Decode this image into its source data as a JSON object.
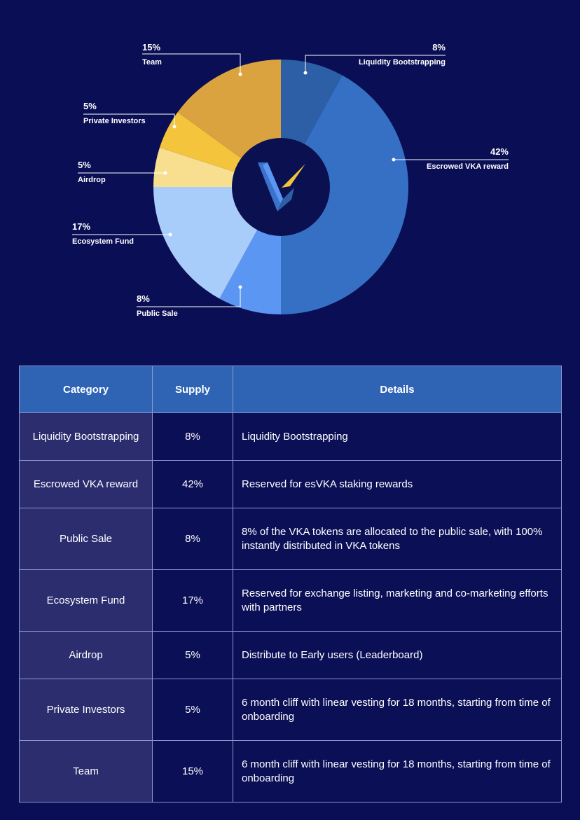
{
  "chart_data": {
    "type": "pie",
    "unit": "%",
    "slices": [
      {
        "label": "Liquidity Bootstrapping",
        "value": 8,
        "color": "#2c5fa6"
      },
      {
        "label": "Escrowed VKA reward",
        "value": 42,
        "color": "#3570c5"
      },
      {
        "label": "Public Sale",
        "value": 8,
        "color": "#5b96f2"
      },
      {
        "label": "Ecosystem Fund",
        "value": 17,
        "color": "#a9cdfb"
      },
      {
        "label": "Airdrop",
        "value": 5,
        "color": "#f7df8f"
      },
      {
        "label": "Private Investors",
        "value": 5,
        "color": "#f3c43c"
      },
      {
        "label": "Team",
        "value": 15,
        "color": "#dba33f"
      }
    ],
    "center_logo": "vka-logo"
  },
  "table": {
    "headers": [
      "Category",
      "Supply",
      "Details"
    ],
    "rows": [
      {
        "category": "Liquidity Bootstrapping",
        "supply": "8%",
        "details": "Liquidity Bootstrapping"
      },
      {
        "category": "Escrowed VKA reward",
        "supply": "42%",
        "details": "Reserved for esVKA staking rewards"
      },
      {
        "category": "Public Sale",
        "supply": "8%",
        "details": "8% of the VKA tokens are allocated to the public sale, with 100% instantly distributed in VKA tokens"
      },
      {
        "category": "Ecosystem Fund",
        "supply": "17%",
        "details": "Reserved for exchange listing, marketing and co-marketing efforts with partners"
      },
      {
        "category": "Airdrop",
        "supply": "5%",
        "details": "Distribute to Early users (Leaderboard)"
      },
      {
        "category": "Private Investors",
        "supply": "5%",
        "details": "6 month cliff with linear vesting for 18 months, starting from time of onboarding"
      },
      {
        "category": "Team",
        "supply": "15%",
        "details": "6 month cliff with linear vesting for 18 months, starting from time of onboarding"
      }
    ]
  },
  "colors": {
    "background": "#0a0e54",
    "header_background": "#2f64b4",
    "category_cell_background": "#2b2d6f",
    "border": "#8d96cf"
  }
}
